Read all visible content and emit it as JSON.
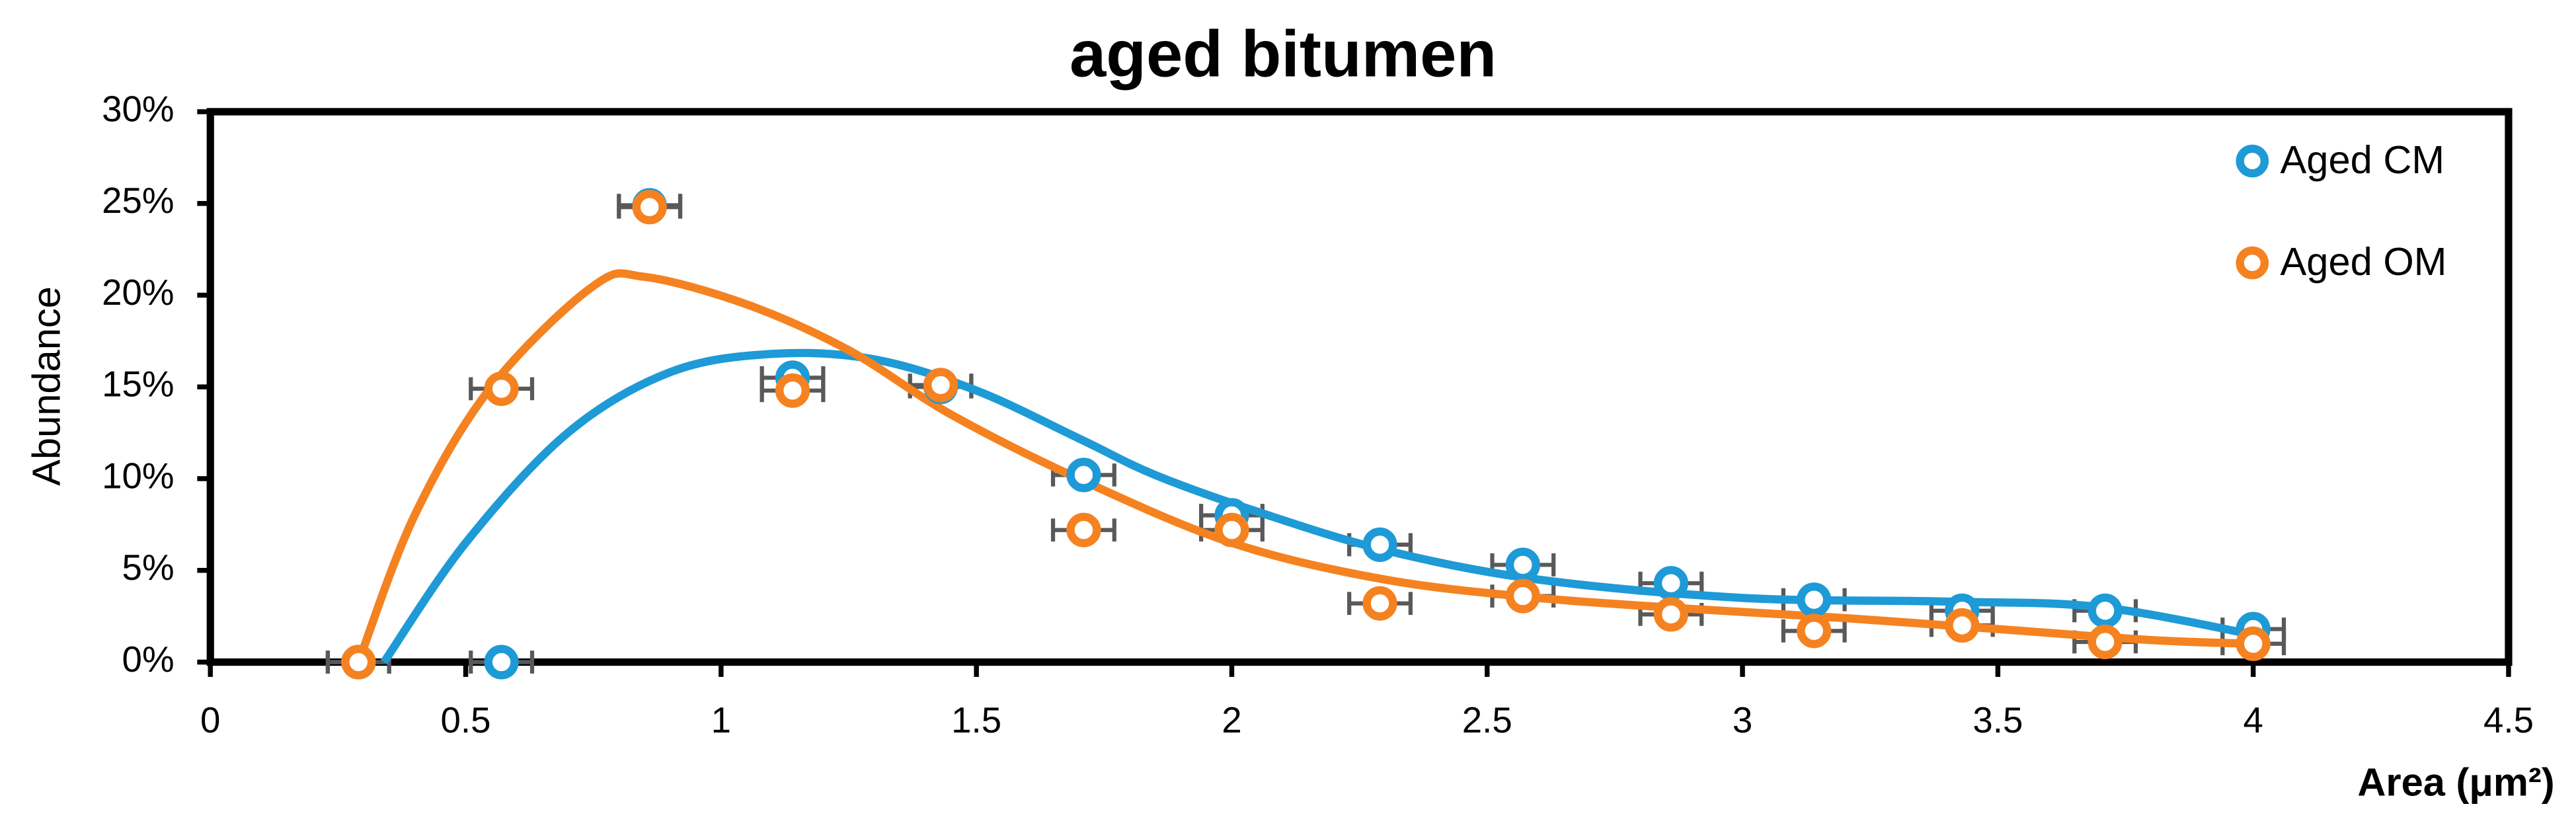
{
  "chart_data": {
    "type": "scatter",
    "title": "aged bitumen",
    "x_label": "Area (μm²)",
    "y_label": "Abundance",
    "xlim": [
      0,
      4.5
    ],
    "ylim": [
      0,
      30
    ],
    "xticks": [
      0,
      0.5,
      1,
      1.5,
      2,
      2.5,
      3,
      3.5,
      4,
      4.5
    ],
    "yticks": [
      {
        "value": 0,
        "label": "0%"
      },
      {
        "value": 5,
        "label": "5%"
      },
      {
        "value": 10,
        "label": "10%"
      },
      {
        "value": 15,
        "label": "15%"
      },
      {
        "value": 20,
        "label": "20%"
      },
      {
        "value": 25,
        "label": "25%"
      },
      {
        "value": 30,
        "label": "30%"
      }
    ],
    "legend": "top-right",
    "series": [
      {
        "name": "Aged CM",
        "color": "#1e9ad6",
        "x": [
          0.29,
          0.57,
          0.86,
          1.14,
          1.43,
          1.71,
          2.0,
          2.29,
          2.57,
          2.86,
          3.14,
          3.43,
          3.71,
          4.0
        ],
        "values": [
          0,
          0,
          24.9,
          15.5,
          15,
          10.2,
          8,
          6.4,
          5.3,
          4.3,
          3.4,
          2.8,
          2.8,
          1.8
        ],
        "xerr": 0.06,
        "trendline": {
          "x": [
            0.34,
            0.5,
            0.7,
            0.9,
            1.1,
            1.3,
            1.5,
            1.7,
            1.85,
            2.05,
            2.3,
            2.6,
            3.0,
            3.4,
            3.7,
            4.0
          ],
          "values": [
            0,
            6.5,
            12.5,
            15.8,
            16.8,
            16.5,
            14.8,
            12.2,
            10.2,
            8.2,
            6.1,
            4.5,
            3.5,
            3.3,
            3.0,
            1.5
          ]
        }
      },
      {
        "name": "Aged OM",
        "color": "#f58220",
        "x": [
          0.29,
          0.57,
          0.86,
          1.14,
          1.43,
          1.71,
          2.0,
          2.29,
          2.57,
          2.86,
          3.14,
          3.43,
          3.71,
          4.0
        ],
        "values": [
          0,
          14.9,
          24.8,
          14.8,
          15.1,
          7.2,
          7.2,
          3.2,
          3.6,
          2.6,
          1.7,
          2.0,
          1.1,
          1.0
        ],
        "xerr": 0.06,
        "trendline": {
          "x": [
            0.29,
            0.4,
            0.55,
            0.75,
            0.85,
            1.05,
            1.25,
            1.45,
            1.7,
            2.0,
            2.3,
            2.6,
            2.9,
            3.2,
            3.5,
            3.8,
            4.0
          ],
          "values": [
            0,
            8,
            15,
            20.5,
            21,
            19.5,
            17,
            13.5,
            10,
            6.5,
            4.5,
            3.5,
            2.9,
            2.4,
            1.8,
            1.2,
            1.0
          ]
        }
      }
    ]
  }
}
